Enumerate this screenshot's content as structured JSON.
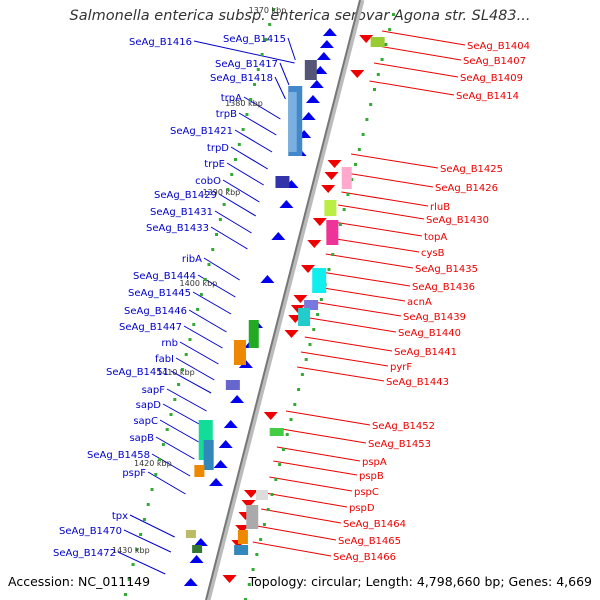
{
  "title": "Salmonella enterica subsp. enterica serovar Agona str. SL483...",
  "accession": "Accession: NC_011149",
  "topology": "Topology: circular; Length: 4,798,660 bp; Genes: 4,669",
  "colors": {
    "left_label": "#0000cc",
    "right_label": "#ee0000",
    "backbone": "#888888",
    "tick": "#33aa33"
  },
  "scale_labels": [
    "1370 kbp",
    "1380 kbp",
    "1390 kbp",
    "1400 kbp",
    "1410 kbp",
    "1420 kbp",
    "1430 kbp"
  ],
  "left_genes": [
    "SeAg_B1415",
    "SeAg_B1416",
    "SeAg_B1417",
    "SeAg_B1418",
    "trpA",
    "trpB",
    "SeAg_B1421",
    "trpD",
    "trpE",
    "cobO",
    "SeAg_B1429",
    "SeAg_B1431",
    "SeAg_B1433",
    "ribA",
    "SeAg_B1444",
    "SeAg_B1445",
    "SeAg_B1446",
    "SeAg_B1447",
    "rnb",
    "fabI",
    "SeAg_B1451",
    "sapF",
    "sapD",
    "sapC",
    "sapB",
    "SeAg_B1458",
    "pspF",
    "tpx",
    "SeAg_B1470",
    "SeAg_B1472"
  ],
  "right_genes": [
    "SeAg_B1404",
    "SeAg_B1407",
    "SeAg_B1409",
    "SeAg_B1414",
    "SeAg_B1425",
    "SeAg_B1426",
    "rluB",
    "SeAg_B1430",
    "topA",
    "cysB",
    "SeAg_B1435",
    "SeAg_B1436",
    "acnA",
    "SeAg_B1439",
    "SeAg_B1440",
    "SeAg_B1441",
    "pyrF",
    "SeAg_B1443",
    "SeAg_B1452",
    "SeAg_B1453",
    "pspA",
    "pspB",
    "pspC",
    "pspD",
    "SeAg_B1464",
    "SeAg_B1465",
    "SeAg_B1466"
  ]
}
